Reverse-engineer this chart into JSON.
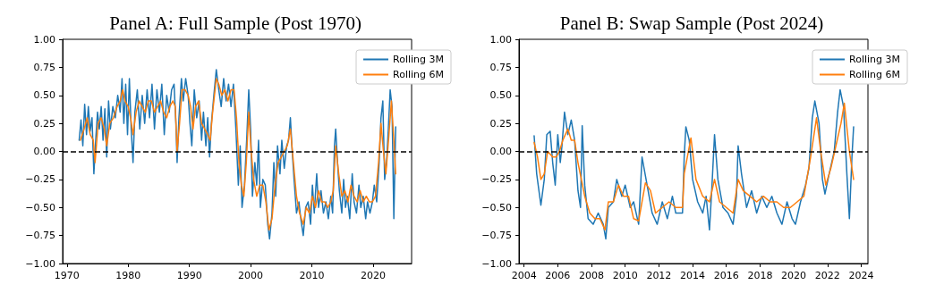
{
  "chart_data": [
    {
      "type": "line",
      "title": "Panel A: Full Sample (Post 1970)",
      "xlim": [
        1969.3,
        2026.3
      ],
      "xticks": [
        1970,
        1980,
        1990,
        2000,
        2010,
        2020
      ],
      "ylim": [
        -1,
        1
      ],
      "yticks": [
        {
          "value": -1,
          "label": "−1.00"
        },
        {
          "value": -0.75,
          "label": "−0.75"
        },
        {
          "value": -0.5,
          "label": "−0.50"
        },
        {
          "value": -0.25,
          "label": "−0.25"
        },
        {
          "value": 0,
          "label": "0.00"
        },
        {
          "value": 0.25,
          "label": "0.25"
        },
        {
          "value": 0.5,
          "label": "0.50"
        },
        {
          "value": 0.75,
          "label": "0.75"
        },
        {
          "value": 1,
          "label": "1.00"
        }
      ],
      "grid": false,
      "legend": "top right",
      "line_style": "solid",
      "marker": "none",
      "ref_lines": [
        {
          "axis": "y",
          "value": 0,
          "color": "#000000",
          "line_style": "dashed"
        }
      ],
      "series": [
        {
          "name": "Rolling 3M",
          "color": "#1f77b4",
          "x": [
            1972.0,
            1972.3,
            1972.6,
            1972.9,
            1973.2,
            1973.5,
            1973.8,
            1974.1,
            1974.4,
            1974.7,
            1975.0,
            1975.3,
            1975.6,
            1975.9,
            1976.2,
            1976.5,
            1976.8,
            1977.1,
            1977.5,
            1977.9,
            1978.3,
            1978.7,
            1979.0,
            1979.3,
            1979.6,
            1979.9,
            1980.2,
            1980.5,
            1980.8,
            1981.1,
            1981.5,
            1981.9,
            1982.3,
            1982.7,
            1983.1,
            1983.5,
            1983.9,
            1984.3,
            1984.7,
            1985.1,
            1985.5,
            1985.9,
            1986.3,
            1986.7,
            1987.1,
            1987.5,
            1987.8,
            1988.0,
            1988.3,
            1988.7,
            1989.0,
            1989.4,
            1989.8,
            1990.1,
            1990.4,
            1990.8,
            1991.2,
            1991.6,
            1992.0,
            1992.3,
            1992.7,
            1993.0,
            1993.3,
            1993.6,
            1994.0,
            1994.4,
            1994.8,
            1995.2,
            1995.6,
            1996.0,
            1996.4,
            1996.8,
            1997.2,
            1997.6,
            1998.0,
            1998.3,
            1998.6,
            1999.0,
            1999.4,
            1999.7,
            2000.0,
            2000.3,
            2000.7,
            2001.0,
            2001.3,
            2001.6,
            2002.0,
            2002.4,
            2002.8,
            2003.1,
            2003.5,
            2003.8,
            2004.1,
            2004.4,
            2004.8,
            2005.1,
            2005.5,
            2005.9,
            2006.2,
            2006.5,
            2006.8,
            2007.1,
            2007.5,
            2007.9,
            2008.2,
            2008.6,
            2009.0,
            2009.4,
            2009.8,
            2010.1,
            2010.4,
            2010.8,
            2011.1,
            2011.5,
            2011.9,
            2012.3,
            2012.7,
            2013.1,
            2013.4,
            2013.7,
            2013.9,
            2014.2,
            2014.5,
            2014.9,
            2015.2,
            2015.5,
            2015.8,
            2016.2,
            2016.6,
            2016.9,
            2017.3,
            2017.7,
            2018.0,
            2018.4,
            2018.8,
            2019.1,
            2019.5,
            2019.9,
            2020.2,
            2020.6,
            2021.0,
            2021.3,
            2021.6,
            2021.9,
            2022.2,
            2022.5,
            2022.8,
            2023.1,
            2023.4,
            2023.7
          ],
          "values": [
            0.1,
            0.28,
            0.05,
            0.42,
            0.15,
            0.4,
            0.18,
            0.3,
            -0.2,
            0.1,
            0.35,
            0.2,
            0.4,
            0.1,
            0.38,
            -0.05,
            0.45,
            0.2,
            0.4,
            0.3,
            0.5,
            0.35,
            0.65,
            0.25,
            0.6,
            0.15,
            0.65,
            0.2,
            -0.1,
            0.35,
            0.55,
            0.2,
            0.5,
            0.25,
            0.55,
            0.3,
            0.6,
            0.2,
            0.55,
            0.35,
            0.6,
            0.15,
            0.5,
            0.35,
            0.55,
            0.6,
            0.25,
            -0.1,
            0.3,
            0.65,
            0.45,
            0.65,
            0.5,
            0.25,
            0.05,
            0.55,
            0.3,
            0.45,
            0.1,
            0.35,
            0.05,
            0.3,
            -0.05,
            0.25,
            0.5,
            0.73,
            0.55,
            0.4,
            0.65,
            0.45,
            0.6,
            0.4,
            0.6,
            0.2,
            -0.3,
            0.05,
            -0.5,
            -0.3,
            0.15,
            0.55,
            0.2,
            -0.4,
            -0.1,
            -0.3,
            0.1,
            -0.5,
            -0.25,
            -0.3,
            -0.65,
            -0.78,
            -0.55,
            -0.1,
            -0.4,
            0.05,
            -0.2,
            0.1,
            -0.15,
            0.05,
            0.1,
            0.3,
            0.0,
            -0.25,
            -0.55,
            -0.45,
            -0.6,
            -0.75,
            -0.5,
            -0.45,
            -0.65,
            -0.3,
            -0.55,
            -0.2,
            -0.5,
            -0.35,
            -0.55,
            -0.45,
            -0.6,
            -0.4,
            -0.55,
            0.05,
            0.2,
            -0.1,
            -0.35,
            -0.55,
            -0.25,
            -0.5,
            -0.4,
            -0.6,
            -0.2,
            -0.45,
            -0.55,
            -0.3,
            -0.5,
            -0.4,
            -0.6,
            -0.45,
            -0.55,
            -0.45,
            -0.3,
            -0.45,
            -0.1,
            0.3,
            0.45,
            -0.25,
            -0.1,
            0.2,
            0.55,
            0.4,
            -0.6,
            0.22
          ]
        },
        {
          "name": "Rolling 6M",
          "color": "#ff7f0e",
          "x": [
            1972.2,
            1972.8,
            1973.3,
            1973.8,
            1974.3,
            1974.6,
            1975.1,
            1975.6,
            1976.1,
            1976.5,
            1977.0,
            1977.6,
            1978.2,
            1978.7,
            1979.1,
            1979.5,
            1980.0,
            1980.4,
            1980.8,
            1981.3,
            1981.8,
            1982.3,
            1982.8,
            1983.3,
            1983.8,
            1984.3,
            1984.8,
            1985.3,
            1985.8,
            1986.3,
            1986.8,
            1987.3,
            1987.7,
            1988.0,
            1988.4,
            1988.8,
            1989.3,
            1989.8,
            1990.2,
            1990.6,
            1991.0,
            1991.5,
            1992.0,
            1992.5,
            1993.0,
            1993.4,
            1993.8,
            1994.4,
            1994.8,
            1995.3,
            1995.8,
            1996.3,
            1996.8,
            1997.3,
            1997.7,
            1998.1,
            1998.5,
            1998.9,
            1999.3,
            1999.7,
            2000.1,
            2000.5,
            2001.0,
            2001.5,
            2002.0,
            2002.5,
            2003.0,
            2003.5,
            2004.0,
            2004.5,
            2005.0,
            2005.5,
            2006.0,
            2006.5,
            2007.0,
            2007.5,
            2008.0,
            2008.6,
            2009.1,
            2009.6,
            2010.1,
            2010.6,
            2011.1,
            2011.6,
            2012.1,
            2012.6,
            2013.1,
            2013.5,
            2013.9,
            2014.4,
            2014.9,
            2015.4,
            2015.9,
            2016.4,
            2016.9,
            2017.4,
            2017.9,
            2018.4,
            2018.9,
            2019.4,
            2019.9,
            2020.4,
            2020.9,
            2021.3,
            2021.7,
            2022.1,
            2022.6,
            2023.0,
            2023.4,
            2023.7
          ],
          "values": [
            0.1,
            0.2,
            0.3,
            0.15,
            0.1,
            -0.1,
            0.25,
            0.3,
            0.2,
            0.05,
            0.25,
            0.3,
            0.4,
            0.45,
            0.55,
            0.45,
            0.4,
            0.3,
            0.15,
            0.35,
            0.45,
            0.4,
            0.35,
            0.45,
            0.45,
            0.35,
            0.4,
            0.45,
            0.35,
            0.3,
            0.4,
            0.45,
            0.4,
            0.0,
            0.25,
            0.55,
            0.55,
            0.5,
            0.4,
            0.2,
            0.4,
            0.45,
            0.25,
            0.2,
            0.15,
            0.1,
            0.35,
            0.65,
            0.6,
            0.5,
            0.55,
            0.45,
            0.55,
            0.55,
            0.3,
            -0.1,
            -0.3,
            -0.4,
            -0.1,
            0.35,
            0.0,
            -0.25,
            -0.4,
            -0.3,
            -0.3,
            -0.45,
            -0.7,
            -0.6,
            -0.3,
            -0.1,
            -0.05,
            0.0,
            0.05,
            0.2,
            -0.1,
            -0.4,
            -0.55,
            -0.65,
            -0.5,
            -0.55,
            -0.4,
            -0.5,
            -0.35,
            -0.45,
            -0.45,
            -0.5,
            -0.45,
            -0.35,
            0.05,
            -0.2,
            -0.4,
            -0.35,
            -0.45,
            -0.3,
            -0.4,
            -0.45,
            -0.35,
            -0.45,
            -0.4,
            -0.45,
            -0.45,
            -0.4,
            -0.1,
            0.25,
            0.0,
            -0.2,
            0.15,
            0.45,
            0.1,
            -0.2
          ]
        }
      ]
    },
    {
      "type": "line",
      "title": "Panel B: Swap Sample (Post 2024)",
      "xlim": [
        2003.7,
        2024.4
      ],
      "xticks": [
        2004,
        2006,
        2008,
        2010,
        2012,
        2014,
        2016,
        2018,
        2020,
        2022,
        2024
      ],
      "ylim": [
        -1,
        1
      ],
      "yticks": [
        {
          "value": -1,
          "label": "−1.00"
        },
        {
          "value": -0.75,
          "label": "−0.75"
        },
        {
          "value": -0.5,
          "label": "−0.50"
        },
        {
          "value": -0.25,
          "label": "−0.25"
        },
        {
          "value": 0,
          "label": "0.00"
        },
        {
          "value": 0.25,
          "label": "0.25"
        },
        {
          "value": 0.5,
          "label": "0.50"
        },
        {
          "value": 0.75,
          "label": "0.75"
        },
        {
          "value": 1,
          "label": "1.00"
        }
      ],
      "grid": false,
      "legend": "top right",
      "line_style": "solid",
      "marker": "none",
      "ref_lines": [
        {
          "axis": "y",
          "value": 0,
          "color": "#000000",
          "line_style": "dashed"
        }
      ],
      "series": [
        {
          "name": "Rolling 3M",
          "color": "#1f77b4",
          "x": [
            2004.6,
            2004.75,
            2005.0,
            2005.2,
            2005.35,
            2005.55,
            2005.7,
            2005.85,
            2006.0,
            2006.15,
            2006.25,
            2006.4,
            2006.6,
            2006.8,
            2007.0,
            2007.2,
            2007.35,
            2007.45,
            2007.6,
            2007.8,
            2008.1,
            2008.4,
            2008.7,
            2008.85,
            2009.0,
            2009.3,
            2009.5,
            2009.8,
            2010.0,
            2010.3,
            2010.5,
            2010.8,
            2011.0,
            2011.3,
            2011.6,
            2011.9,
            2012.2,
            2012.5,
            2012.8,
            2013.0,
            2013.4,
            2013.5,
            2013.6,
            2013.8,
            2014.0,
            2014.3,
            2014.6,
            2014.8,
            2015.0,
            2015.15,
            2015.3,
            2015.5,
            2015.8,
            2016.1,
            2016.4,
            2016.6,
            2016.7,
            2016.9,
            2017.2,
            2017.5,
            2017.8,
            2018.1,
            2018.4,
            2018.7,
            2019.0,
            2019.3,
            2019.6,
            2019.9,
            2020.1,
            2020.4,
            2020.7,
            2020.9,
            2021.1,
            2021.25,
            2021.5,
            2021.7,
            2021.85,
            2022.1,
            2022.4,
            2022.6,
            2022.75,
            2022.95,
            2023.15,
            2023.3,
            2023.45,
            2023.55
          ],
          "values": [
            0.14,
            -0.2,
            -0.48,
            -0.25,
            0.15,
            0.18,
            -0.1,
            -0.3,
            0.15,
            -0.1,
            0.05,
            0.35,
            0.15,
            0.28,
            0.1,
            -0.35,
            -0.5,
            0.23,
            -0.3,
            -0.6,
            -0.65,
            -0.55,
            -0.65,
            -0.78,
            -0.5,
            -0.45,
            -0.25,
            -0.4,
            -0.3,
            -0.5,
            -0.45,
            -0.65,
            -0.05,
            -0.3,
            -0.55,
            -0.65,
            -0.45,
            -0.6,
            -0.4,
            -0.55,
            -0.55,
            -0.05,
            0.22,
            0.1,
            -0.25,
            -0.45,
            -0.55,
            -0.4,
            -0.7,
            -0.3,
            0.15,
            -0.25,
            -0.5,
            -0.55,
            -0.65,
            -0.4,
            0.05,
            -0.2,
            -0.5,
            -0.35,
            -0.55,
            -0.4,
            -0.5,
            -0.4,
            -0.55,
            -0.65,
            -0.45,
            -0.6,
            -0.65,
            -0.45,
            -0.3,
            -0.15,
            0.3,
            0.45,
            0.25,
            -0.25,
            -0.38,
            -0.2,
            0.0,
            0.35,
            0.55,
            0.4,
            -0.2,
            -0.6,
            -0.05,
            0.22
          ]
        },
        {
          "name": "Rolling 6M",
          "color": "#ff7f0e",
          "x": [
            2004.6,
            2004.8,
            2005.0,
            2005.2,
            2005.4,
            2005.7,
            2005.9,
            2006.1,
            2006.3,
            2006.6,
            2006.8,
            2007.0,
            2007.2,
            2007.4,
            2007.6,
            2007.9,
            2008.2,
            2008.5,
            2008.8,
            2009.0,
            2009.3,
            2009.6,
            2009.9,
            2010.2,
            2010.5,
            2010.8,
            2011.0,
            2011.2,
            2011.5,
            2011.8,
            2012.2,
            2012.6,
            2013.0,
            2013.4,
            2013.5,
            2013.9,
            2014.2,
            2014.6,
            2015.0,
            2015.3,
            2015.6,
            2016.0,
            2016.4,
            2016.7,
            2017.0,
            2017.4,
            2017.8,
            2018.2,
            2018.6,
            2019.0,
            2019.4,
            2019.8,
            2020.2,
            2020.6,
            2021.0,
            2021.35,
            2021.6,
            2021.9,
            2022.2,
            2022.5,
            2022.8,
            2023.0,
            2023.3,
            2023.55
          ],
          "values": [
            0.08,
            -0.05,
            -0.25,
            -0.2,
            0.0,
            -0.05,
            -0.05,
            0.0,
            0.1,
            0.2,
            0.1,
            0.1,
            -0.1,
            -0.25,
            -0.4,
            -0.55,
            -0.6,
            -0.6,
            -0.7,
            -0.45,
            -0.45,
            -0.3,
            -0.4,
            -0.4,
            -0.6,
            -0.62,
            -0.45,
            -0.28,
            -0.35,
            -0.55,
            -0.5,
            -0.45,
            -0.5,
            -0.5,
            -0.2,
            0.12,
            -0.25,
            -0.4,
            -0.45,
            -0.25,
            -0.45,
            -0.5,
            -0.55,
            -0.25,
            -0.35,
            -0.4,
            -0.45,
            -0.4,
            -0.45,
            -0.45,
            -0.5,
            -0.5,
            -0.45,
            -0.4,
            -0.05,
            0.3,
            0.0,
            -0.3,
            -0.15,
            0.05,
            0.25,
            0.43,
            0.0,
            -0.25
          ]
        }
      ]
    }
  ]
}
